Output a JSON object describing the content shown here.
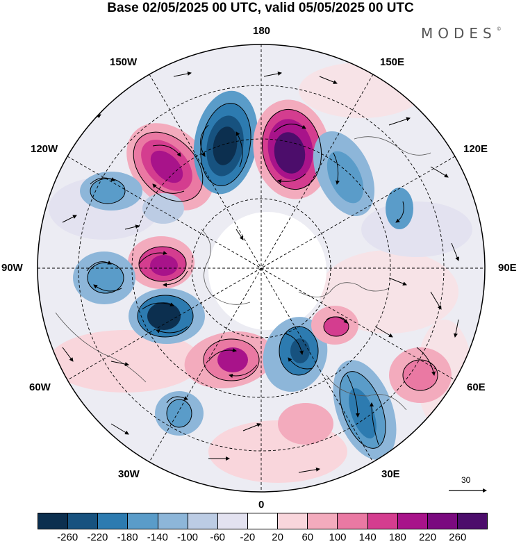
{
  "title": "Base 02/05/2025 00 UTC, valid 05/05/2025 00 UTC",
  "logo": {
    "text": "MODES",
    "mark": "©"
  },
  "longitude_labels": {
    "top": "180",
    "upper_left": "150W",
    "upper_right": "150E",
    "left_upper": "120W",
    "right_upper": "120E",
    "left": "90W",
    "right": "90E",
    "left_lower": "60W",
    "right_lower": "60E",
    "lower_left": "30W",
    "lower_right": "30E",
    "bottom": "0"
  },
  "reference_vector": {
    "value": "30"
  },
  "colorbar": {
    "colors": [
      "#0c2f4f",
      "#17527f",
      "#2d7bb0",
      "#5a9cc9",
      "#8db6d9",
      "#bccce4",
      "#e3e2f0",
      "#ffffff",
      "#f9d6dc",
      "#f3abbd",
      "#ea79a3",
      "#d43d8f",
      "#a8138a",
      "#7a0a7f",
      "#4c0d6b"
    ],
    "ticks": [
      "-260",
      "-220",
      "-180",
      "-140",
      "-100",
      "-60",
      "-20",
      "20",
      "60",
      "100",
      "140",
      "180",
      "220",
      "260"
    ]
  }
}
